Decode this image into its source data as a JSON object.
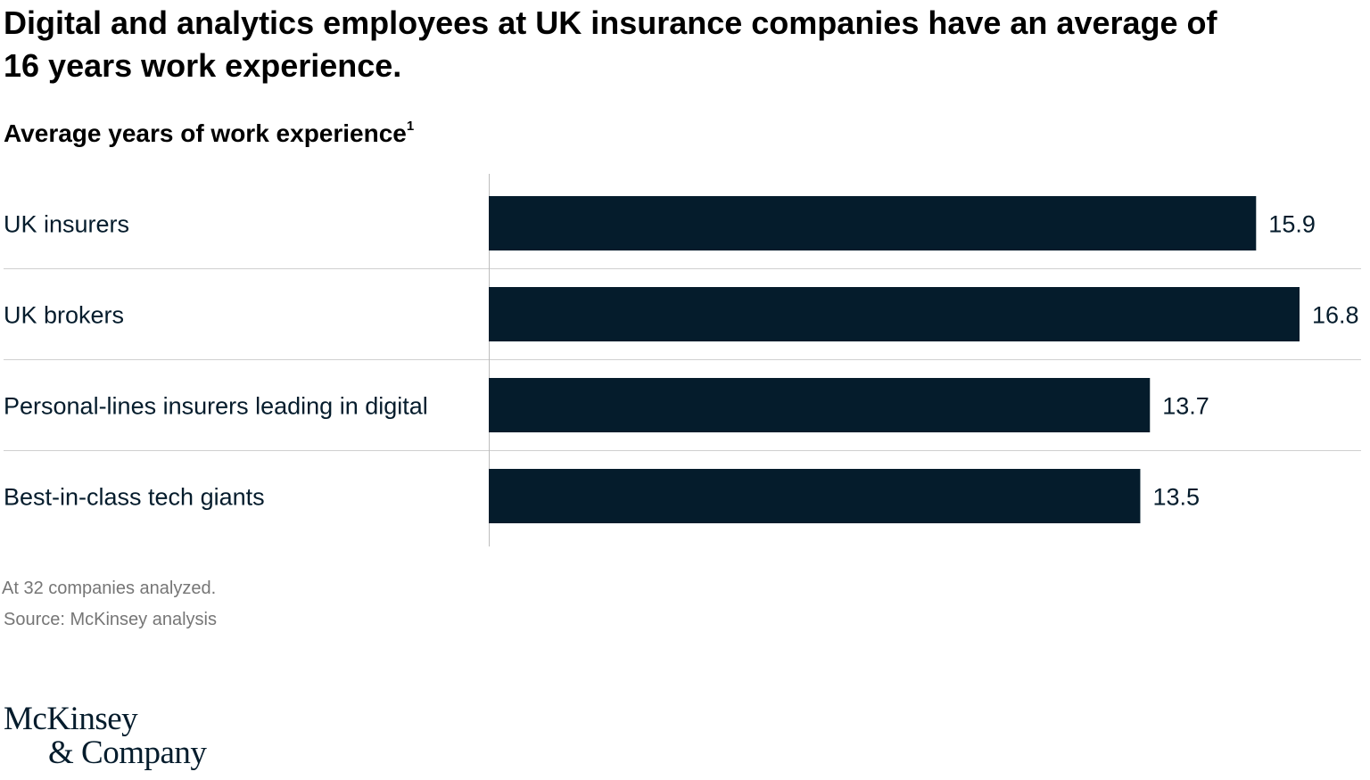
{
  "title": "Digital and analytics employees at UK insurance companies have an average of 16 years work experience.",
  "subtitle": "Average years of work experience",
  "subtitle_footnote_marker": "1",
  "chart_data": {
    "type": "bar",
    "orientation": "horizontal",
    "title": "Digital and analytics employees at UK insurance companies have an average of 16 years work experience.",
    "subtitle": "Average years of work experience",
    "categories": [
      "UK insurers",
      "UK brokers",
      "Personal-lines insurers leading in digital",
      "Best-in-class tech giants"
    ],
    "values": [
      15.9,
      16.8,
      13.7,
      13.5
    ],
    "value_labels": [
      "15.9",
      "16.8",
      "13.7",
      "13.5"
    ],
    "xlim": [
      0,
      16.8
    ],
    "grid": false,
    "legend": "none",
    "bar_color": "#051c2c"
  },
  "footnote": "At 32 companies analyzed.",
  "source": "Source: McKinsey analysis",
  "logo": {
    "line1": "McKinsey",
    "line2": "& Company"
  },
  "colors": {
    "bar": "#051c2c",
    "separator": "#d0d0d0",
    "note": "#767676"
  }
}
